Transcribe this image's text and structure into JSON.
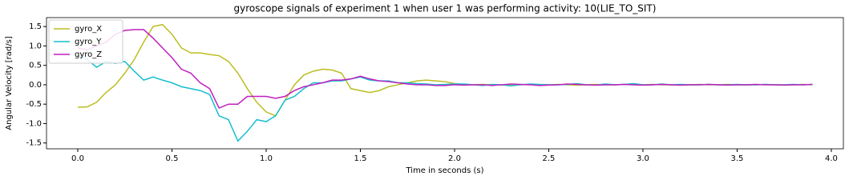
{
  "chart_data": {
    "type": "line",
    "title": "gyroscope signals of experiment 1 when user 1 was performing activity: 10(LIE_TO_SIT)",
    "xlabel": "Time in seconds (s)",
    "ylabel": "Angular Velocity [rad/s]",
    "x": [
      0,
      0.05,
      0.1,
      0.15,
      0.2,
      0.25,
      0.3,
      0.35,
      0.4,
      0.45,
      0.5,
      0.55,
      0.6,
      0.65,
      0.7,
      0.75,
      0.8,
      0.85,
      0.9,
      0.95,
      1.0,
      1.05,
      1.1,
      1.15,
      1.2,
      1.25,
      1.3,
      1.35,
      1.4,
      1.45,
      1.5,
      1.55,
      1.6,
      1.65,
      1.7,
      1.75,
      1.8,
      1.85,
      1.9,
      1.95,
      2.0,
      2.05,
      2.1,
      2.15,
      2.2,
      2.25,
      2.3,
      2.35,
      2.4,
      2.45,
      2.5,
      2.55,
      2.6,
      2.65,
      2.7,
      2.75,
      2.8,
      2.85,
      2.9,
      2.95,
      3.0,
      3.05,
      3.1,
      3.15,
      3.2,
      3.25,
      3.3,
      3.35,
      3.4,
      3.45,
      3.5,
      3.55,
      3.6,
      3.65,
      3.7,
      3.75,
      3.8,
      3.85,
      3.9
    ],
    "series": [
      {
        "name": "gyro_X",
        "color": "#bcbd22",
        "values": [
          -0.58,
          -0.57,
          -0.45,
          -0.2,
          0.0,
          0.3,
          0.65,
          1.1,
          1.5,
          1.55,
          1.3,
          0.95,
          0.82,
          0.82,
          0.78,
          0.75,
          0.6,
          0.3,
          -0.1,
          -0.45,
          -0.7,
          -0.8,
          -0.4,
          0.0,
          0.25,
          0.35,
          0.4,
          0.38,
          0.3,
          -0.1,
          -0.15,
          -0.2,
          -0.15,
          -0.05,
          0.0,
          0.05,
          0.1,
          0.12,
          0.1,
          0.08,
          0.03,
          0.01,
          0.0,
          0.01,
          0.0,
          -0.01,
          0.01,
          0.0,
          0.01,
          0.0,
          0.0,
          0.01,
          0.0,
          -0.01,
          0.0,
          0.01,
          0.0,
          0.0,
          0.01,
          0.0,
          0.0,
          0.01,
          0.0,
          0.0,
          -0.01,
          0.0,
          0.01,
          0.0,
          0.0,
          0.01,
          0.0,
          0.0,
          0.0,
          0.01,
          0.0,
          0.0,
          0.0,
          0.01,
          0.0
        ]
      },
      {
        "name": "gyro_Y",
        "color": "#17becf",
        "values": [
          0.75,
          0.65,
          0.45,
          0.6,
          0.55,
          0.6,
          0.35,
          0.12,
          0.2,
          0.12,
          0.05,
          -0.05,
          -0.1,
          -0.15,
          -0.25,
          -0.8,
          -0.9,
          -1.45,
          -1.2,
          -0.9,
          -0.95,
          -0.8,
          -0.4,
          -0.3,
          -0.1,
          0.05,
          0.05,
          0.1,
          0.1,
          0.15,
          0.2,
          0.12,
          0.1,
          0.1,
          0.05,
          0.05,
          0.03,
          0.02,
          0.0,
          0.01,
          0.02,
          0.02,
          0.0,
          -0.02,
          0.01,
          0.0,
          -0.03,
          0.0,
          0.02,
          0.01,
          0.0,
          0.0,
          0.01,
          0.03,
          0.0,
          -0.01,
          0.02,
          0.0,
          0.01,
          0.03,
          0.0,
          0.0,
          0.02,
          0.0,
          0.01,
          0.0,
          0.0,
          0.01,
          0.0,
          0.0,
          0.01,
          0.0,
          0.0,
          0.01,
          0.0,
          0.0,
          0.01,
          0.0,
          0.01
        ]
      },
      {
        "name": "gyro_Z",
        "color": "#bf1fbf",
        "values": [
          0.95,
          0.9,
          1.0,
          1.1,
          1.3,
          1.4,
          1.42,
          1.42,
          1.2,
          0.95,
          0.7,
          0.4,
          0.3,
          0.05,
          -0.1,
          -0.6,
          -0.5,
          -0.5,
          -0.3,
          -0.3,
          -0.3,
          -0.35,
          -0.3,
          -0.15,
          -0.05,
          0.0,
          0.05,
          0.12,
          0.12,
          0.15,
          0.22,
          0.15,
          0.1,
          0.08,
          0.05,
          0.02,
          0.0,
          0.0,
          -0.02,
          -0.02,
          0.0,
          -0.01,
          0.0,
          0.0,
          -0.02,
          0.0,
          0.02,
          0.01,
          0.0,
          -0.02,
          -0.01,
          0.0,
          0.02,
          0.01,
          0.0,
          -0.01,
          0.0,
          0.0,
          0.01,
          0.0,
          -0.01,
          0.0,
          0.01,
          0.0,
          -0.01,
          0.0,
          0.0,
          0.01,
          0.0,
          -0.01,
          0.0,
          0.0,
          0.01,
          0.0,
          0.0,
          -0.01,
          0.0,
          0.0,
          0.01
        ]
      }
    ],
    "xlim": [
      -0.166,
      4.064
    ],
    "ylim": [
      -1.65,
      1.73
    ],
    "xticks": [
      {
        "value": 0,
        "label": "0.0"
      },
      0.5,
      {
        "value": 1,
        "label": "1.0"
      },
      1.5,
      {
        "value": 2,
        "label": "2.0"
      },
      2.5,
      {
        "value": 3,
        "label": "3.0"
      },
      3.5,
      {
        "value": 4,
        "label": "4.0"
      }
    ],
    "yticks": [
      -1.5,
      {
        "value": -1,
        "label": "-1.0"
      },
      -0.5,
      {
        "value": 0,
        "label": "0.0"
      },
      0.5,
      {
        "value": 1,
        "label": "1.0"
      },
      1.5
    ],
    "legend": "upper left"
  }
}
